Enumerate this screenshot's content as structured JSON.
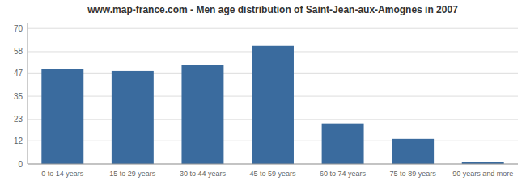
{
  "chart_data": {
    "type": "bar",
    "title": "www.map-france.com - Men age distribution of Saint-Jean-aux-Amognes in 2007",
    "categories": [
      "0 to 14 years",
      "15 to 29 years",
      "30 to 44 years",
      "45 to 59 years",
      "60 to 74 years",
      "75 to 89 years",
      "90 years and more"
    ],
    "values": [
      49,
      48,
      51,
      61,
      21,
      13,
      1
    ],
    "color": "#3a6b9e",
    "ylim": [
      0,
      73
    ],
    "yticks": [
      0,
      12,
      23,
      35,
      47,
      58,
      70
    ],
    "grid": true
  }
}
